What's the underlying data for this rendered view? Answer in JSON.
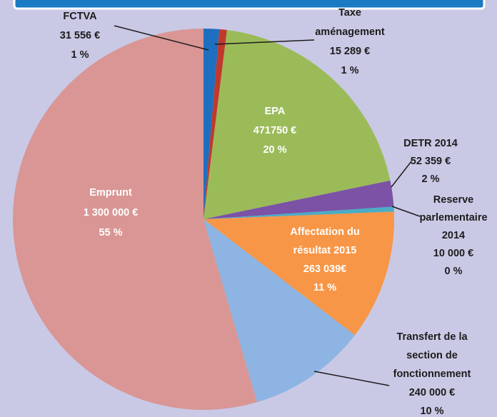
{
  "chart_data": {
    "type": "pie",
    "categories": [
      "FCTVA",
      "Taxe\naménagement",
      "EPA",
      "DETR 2014",
      "Reserve\nparlementaire\n2014",
      "Affectation du\nrésultat 2015",
      "Transfert de la\nsection de\nfonctionnement",
      "Emprunt"
    ],
    "values": [
      31556,
      15289,
      471750,
      52359,
      10000,
      263039,
      240000,
      1300000
    ],
    "value_labels": [
      "31 556 €",
      "15 289 €",
      "471750 €",
      "52 359 €",
      "10 000 €",
      "263 039€",
      "240 000 €",
      "1 300 000 €"
    ],
    "percent_labels": [
      "1 %",
      "1 %",
      "20 %",
      "2 %",
      "0 %",
      "11 %",
      "10 %",
      "55 %"
    ],
    "colors": [
      "#1f6fc0",
      "#c0392b",
      "#9bbb59",
      "#7b52a6",
      "#4bacc6",
      "#f79646",
      "#8db4e2",
      "#d99694"
    ]
  }
}
